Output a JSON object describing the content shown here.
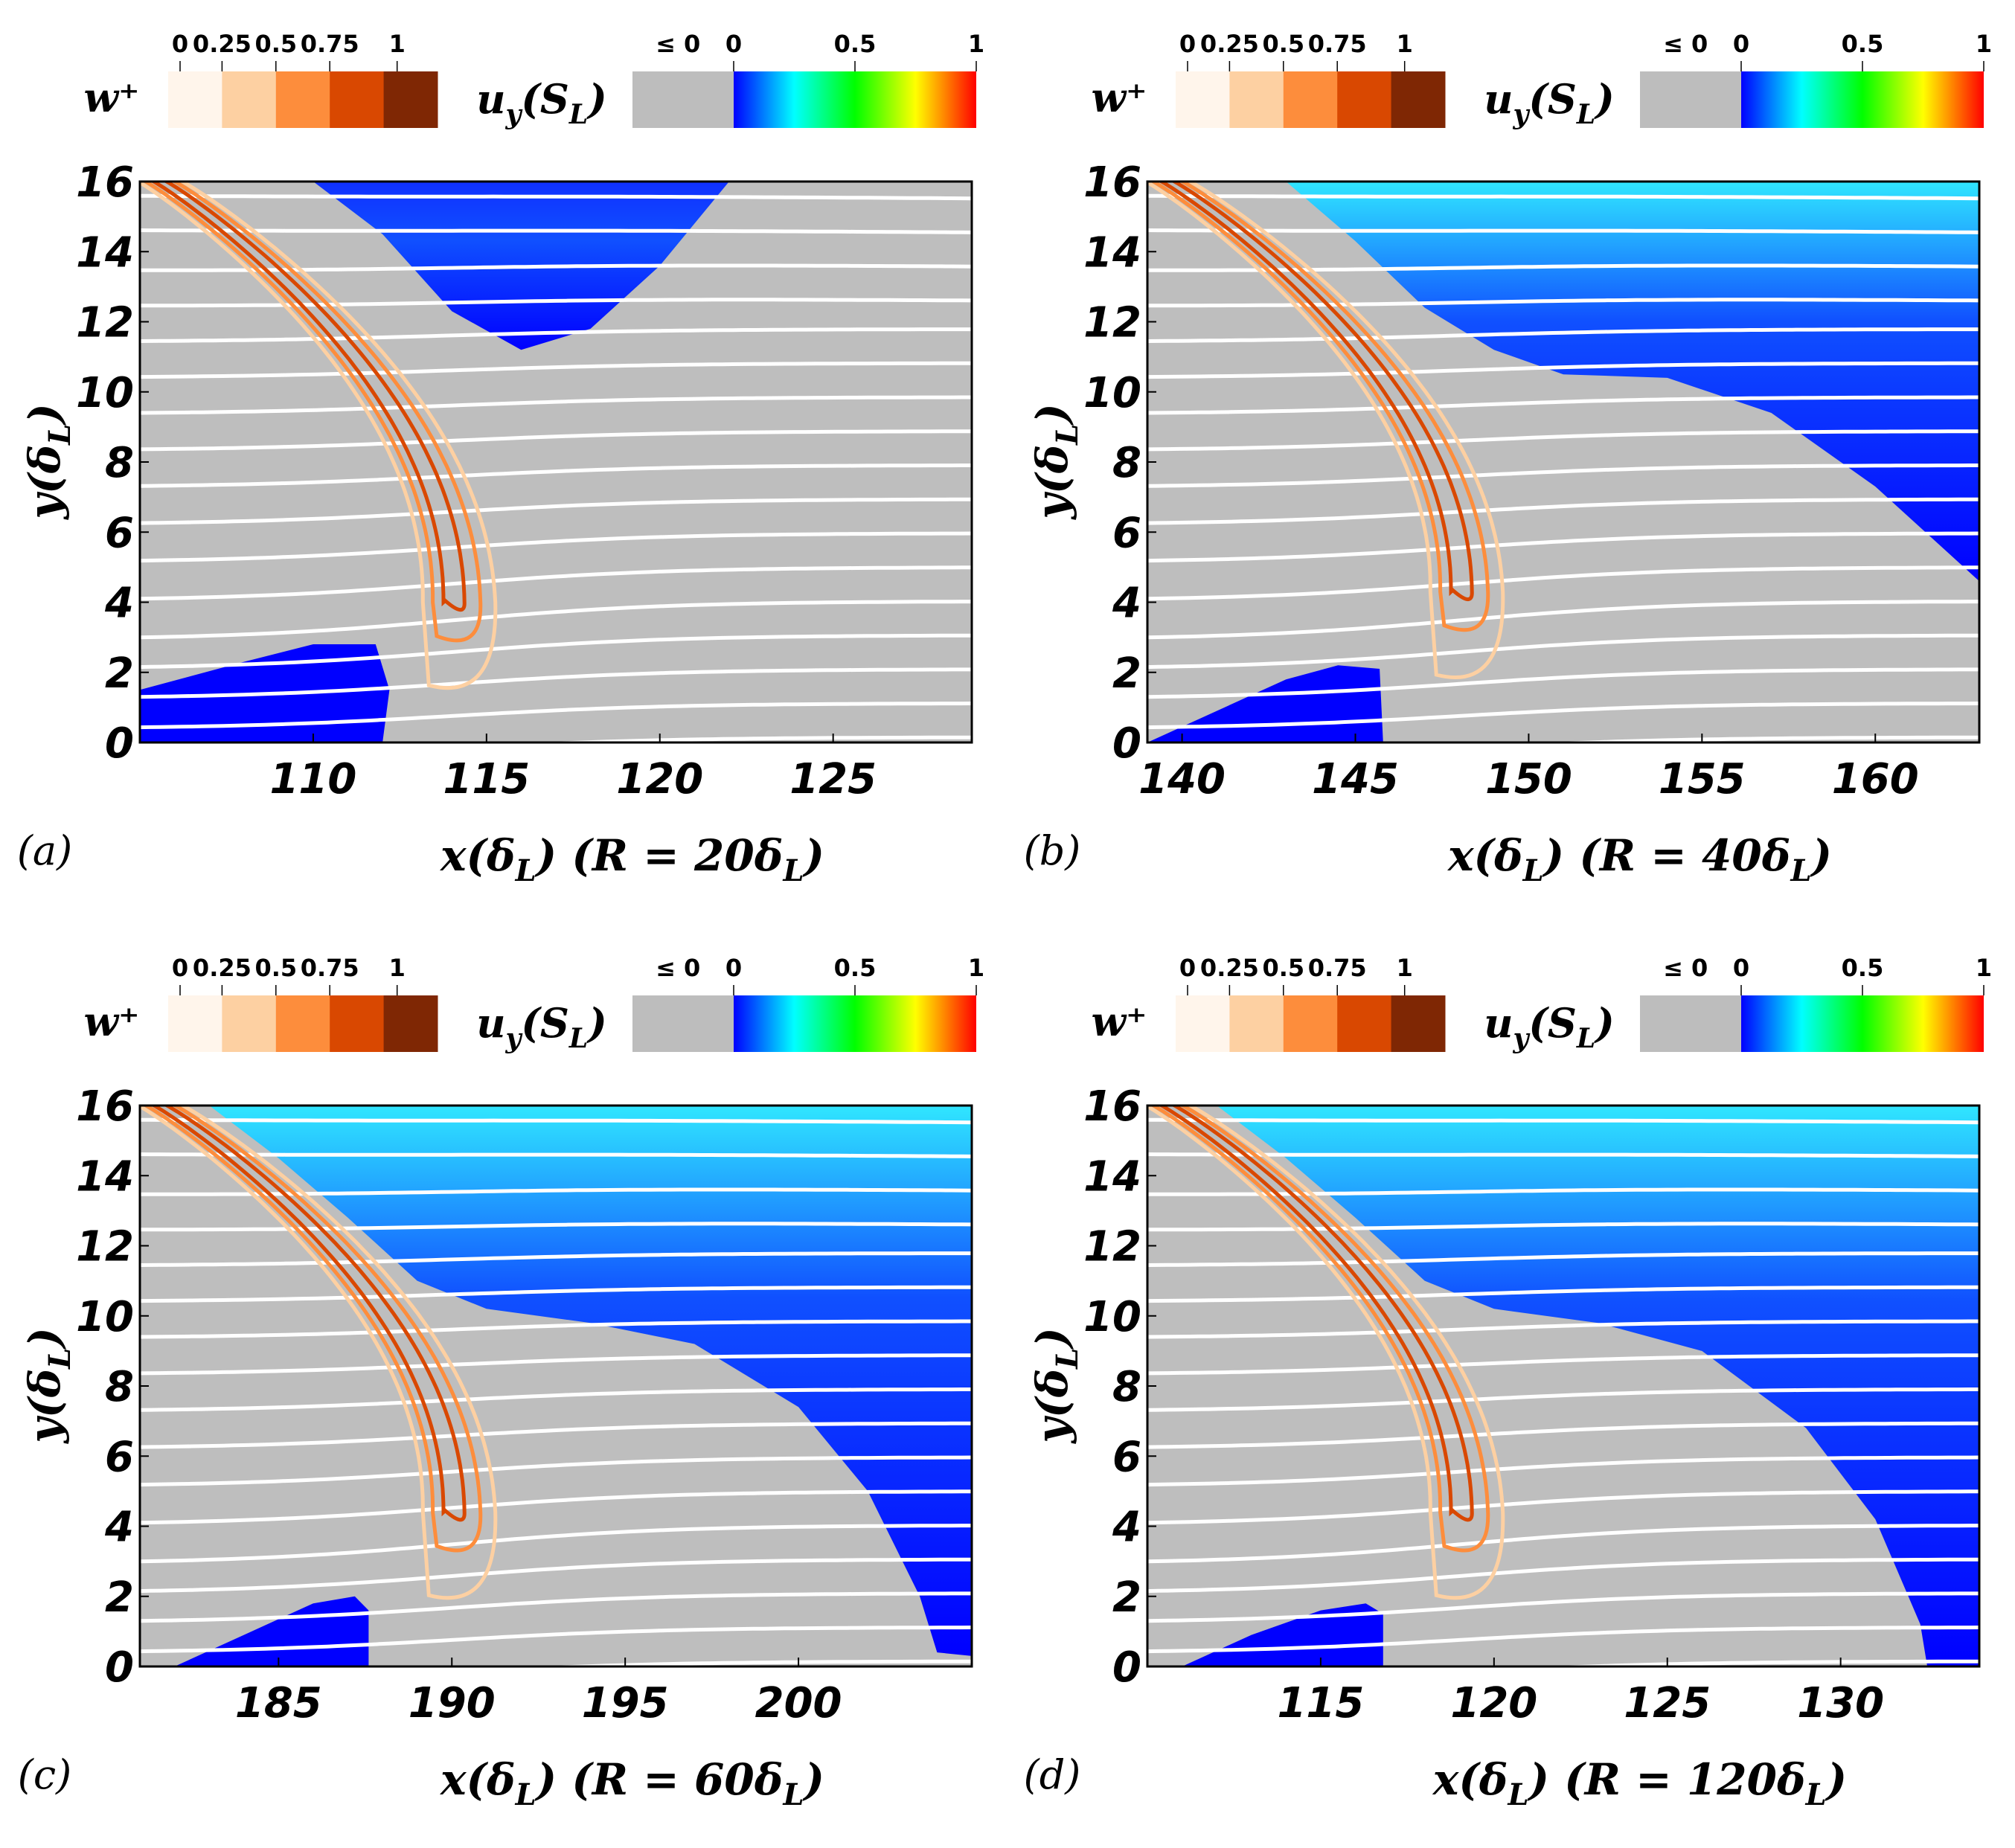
{
  "colorbars": {
    "w_label": "w⁺",
    "u_label": "uᵧ(Sʟ)",
    "w_ticks": [
      "0",
      "0.25",
      "0.5",
      "0.75",
      "1"
    ],
    "w_colors": [
      "#fff5eb",
      "#fdd0a2",
      "#fd8d3c",
      "#d94801",
      "#7f2704"
    ],
    "u_ticks": [
      "≤ 0",
      "0",
      "0.5",
      "1"
    ],
    "u_nonpositive_color": "#bdbdbd",
    "u_gradient": [
      "#0000ff",
      "#00ffff",
      "#00ff00",
      "#ffff00",
      "#ff0000"
    ]
  },
  "colors": {
    "gray": "#bebebe",
    "blue": "#0000ff",
    "streamline": "#ffffff",
    "w_contours": [
      "#fdd0a2",
      "#fd8d3c",
      "#d94801"
    ]
  },
  "y_label": "y(δL)",
  "chart_data": [
    {
      "type": "heatmap",
      "panel": "(a)",
      "title": "",
      "xlabel": "x(δL) (R = 20δL)",
      "ylabel": "y(δL)",
      "xlim": [
        105,
        129
      ],
      "ylim": [
        0,
        16
      ],
      "xticks": [
        110,
        115,
        120,
        125
      ],
      "yticks": [
        0,
        2,
        4,
        6,
        8,
        10,
        12,
        14,
        16
      ],
      "positive_uy_regions": [
        {
          "name": "upper-blue-region",
          "polygon": [
            [
              110,
              16
            ],
            [
              112,
              14.5
            ],
            [
              114,
              12.3
            ],
            [
              116,
              11.2
            ],
            [
              118,
              11.8
            ],
            [
              120,
              13.6
            ],
            [
              122,
              16
            ]
          ]
        },
        {
          "name": "lower-blue-region",
          "polygon": [
            [
              105,
              0
            ],
            [
              105,
              1.5
            ],
            [
              108,
              2.3
            ],
            [
              110,
              2.8
            ],
            [
              111.8,
              2.8
            ],
            [
              112.2,
              1.5
            ],
            [
              112,
              0
            ]
          ]
        }
      ],
      "flame_tip": {
        "x": 114,
        "y": 4.0
      }
    },
    {
      "type": "heatmap",
      "panel": "(b)",
      "title": "",
      "xlabel": "x(δL) (R = 40δL)",
      "ylabel": "y(δL)",
      "xlim": [
        139,
        163
      ],
      "ylim": [
        0,
        16
      ],
      "xticks": [
        140,
        145,
        150,
        155,
        160
      ],
      "yticks": [
        0,
        2,
        4,
        6,
        8,
        10,
        12,
        14,
        16
      ],
      "positive_uy_regions": [
        {
          "name": "upper-blue-region",
          "polygon": [
            [
              143,
              16
            ],
            [
              145,
              14.3
            ],
            [
              147,
              12.4
            ],
            [
              149,
              11.2
            ],
            [
              151,
              10.5
            ],
            [
              154,
              10.4
            ],
            [
              157,
              9.4
            ],
            [
              160,
              7.3
            ],
            [
              162,
              5.5
            ],
            [
              163,
              4.6
            ],
            [
              163,
              16
            ]
          ]
        },
        {
          "name": "lower-blue-region",
          "polygon": [
            [
              139,
              0
            ],
            [
              141,
              0.9
            ],
            [
              143,
              1.8
            ],
            [
              144.5,
              2.2
            ],
            [
              145.7,
              2.1
            ],
            [
              145.8,
              0
            ]
          ]
        }
      ],
      "flame_tip": {
        "x": 148,
        "y": 4.3
      }
    },
    {
      "type": "heatmap",
      "panel": "(c)",
      "title": "",
      "xlabel": "x(δL) (R = 60δL)",
      "ylabel": "y(δL)",
      "xlim": [
        181,
        205
      ],
      "ylim": [
        0,
        16
      ],
      "xticks": [
        185,
        190,
        195,
        200
      ],
      "yticks": [
        0,
        2,
        4,
        6,
        8,
        10,
        12,
        14,
        16
      ],
      "positive_uy_regions": [
        {
          "name": "upper-blue-region",
          "polygon": [
            [
              183,
              16
            ],
            [
              185,
              14.5
            ],
            [
              187,
              12.8
            ],
            [
              189,
              11
            ],
            [
              191,
              10.2
            ],
            [
              194,
              9.8
            ],
            [
              197,
              9.2
            ],
            [
              200,
              7.4
            ],
            [
              202,
              5.0
            ],
            [
              203.5,
              2.0
            ],
            [
              204,
              0.4
            ],
            [
              205,
              0.3
            ],
            [
              205,
              16
            ]
          ]
        },
        {
          "name": "lower-blue-region",
          "polygon": [
            [
              182,
              0
            ],
            [
              184,
              0.9
            ],
            [
              186,
              1.8
            ],
            [
              187.2,
              2.0
            ],
            [
              187.6,
              1.6
            ],
            [
              187.6,
              0
            ]
          ]
        }
      ],
      "flame_tip": {
        "x": 190,
        "y": 4.4
      }
    },
    {
      "type": "heatmap",
      "panel": "(d)",
      "title": "",
      "xlabel": "x(δL) (R = 120δL)",
      "ylabel": "y(δL)",
      "xlim": [
        110,
        134
      ],
      "ylim": [
        0,
        16
      ],
      "xticks": [
        115,
        120,
        125,
        130
      ],
      "yticks": [
        0,
        2,
        4,
        6,
        8,
        10,
        12,
        14,
        16
      ],
      "positive_uy_regions": [
        {
          "name": "upper-blue-region",
          "polygon": [
            [
              112,
              16
            ],
            [
              114,
              14.5
            ],
            [
              116,
              12.8
            ],
            [
              118,
              11
            ],
            [
              120,
              10.2
            ],
            [
              123,
              9.8
            ],
            [
              126,
              9.0
            ],
            [
              129,
              6.8
            ],
            [
              131,
              4.2
            ],
            [
              132.3,
              1.2
            ],
            [
              132.5,
              0
            ],
            [
              134,
              0
            ],
            [
              134,
              16
            ]
          ]
        },
        {
          "name": "lower-blue-region",
          "polygon": [
            [
              111,
              0
            ],
            [
              113,
              0.9
            ],
            [
              115,
              1.6
            ],
            [
              116.3,
              1.8
            ],
            [
              116.8,
              1.5
            ],
            [
              116.8,
              0
            ]
          ]
        }
      ],
      "flame_tip": {
        "x": 119,
        "y": 4.4
      }
    }
  ]
}
